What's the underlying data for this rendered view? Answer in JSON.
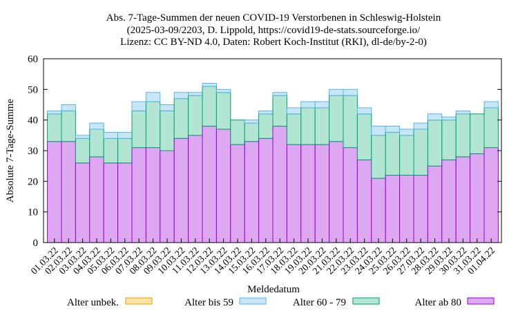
{
  "chart_data": {
    "type": "bar",
    "stacked": true,
    "title": [
      "Abs. 7-Tage-Summen der neuen COVID-19 Verstorbenen in Schleswig-Holstein",
      "(2025-03-09/2203, D. Lippold, https://covid19-de-stats.sourceforge.io/",
      "Lizenz: CC BY-ND 4.0, Daten: Robert Koch-Institut (RKI), dl-de/by-2-0)"
    ],
    "xlabel": "Meldedatum",
    "ylabel": "Absolute 7-Tage-Summe",
    "ylim": [
      0,
      60
    ],
    "yticks": [
      0,
      10,
      20,
      30,
      40,
      50,
      60
    ],
    "grid": false,
    "legend_position": "bottom",
    "categories": [
      "01.03.22",
      "02.03.22",
      "03.03.22",
      "04.03.22",
      "05.03.22",
      "06.03.22",
      "07.03.22",
      "08.03.22",
      "09.03.22",
      "10.03.22",
      "11.03.22",
      "12.03.22",
      "13.03.22",
      "14.03.22",
      "15.03.22",
      "16.03.22",
      "17.03.22",
      "18.03.22",
      "19.03.22",
      "20.03.22",
      "21.03.22",
      "22.03.22",
      "23.03.22",
      "24.03.22",
      "25.03.22",
      "26.03.22",
      "27.03.22",
      "28.03.22",
      "29.03.22",
      "30.03.22",
      "31.03.22",
      "01.04.22"
    ],
    "series": [
      {
        "name": "Alter ab 80",
        "fill": "#dda7f2",
        "stroke": "#9400d3",
        "values": [
          33,
          33,
          26,
          28,
          26,
          26,
          31,
          31,
          30,
          34,
          35,
          38,
          37,
          32,
          33,
          34,
          38,
          32,
          32,
          32,
          33,
          31,
          27,
          21,
          22,
          22,
          22,
          25,
          27,
          28,
          29,
          31
        ]
      },
      {
        "name": "Alter 60 - 79",
        "fill": "#b2e6d3",
        "stroke": "#009e73",
        "values": [
          9,
          10,
          8,
          9,
          8,
          8,
          12,
          15,
          13,
          13,
          13,
          13,
          12,
          8,
          6,
          8,
          10,
          10,
          12,
          12,
          15,
          17,
          15,
          14,
          14,
          13,
          15,
          15,
          13,
          14,
          13,
          13
        ]
      },
      {
        "name": "Alter bis 59",
        "fill": "#c7e7f7",
        "stroke": "#56b4e9",
        "values": [
          1,
          2,
          1,
          2,
          2,
          2,
          3,
          3,
          2,
          2,
          1,
          1,
          1,
          0,
          1,
          1,
          1,
          2,
          2,
          2,
          2,
          2,
          2,
          3,
          2,
          2,
          2,
          2,
          1,
          1,
          0,
          2
        ]
      },
      {
        "name": "Alter unbek.",
        "fill": "#fbe4a5",
        "stroke": "#e69f00",
        "values": [
          0,
          0,
          0,
          0,
          0,
          0,
          0,
          0,
          0,
          0,
          0,
          0,
          0,
          0,
          0,
          0,
          0,
          0,
          0,
          0,
          0,
          0,
          0,
          0,
          0,
          0,
          0,
          0,
          0,
          0,
          0,
          0
        ]
      }
    ],
    "legend_order": [
      "Alter unbek.",
      "Alter bis 59",
      "Alter 60 - 79",
      "Alter ab 80"
    ]
  }
}
